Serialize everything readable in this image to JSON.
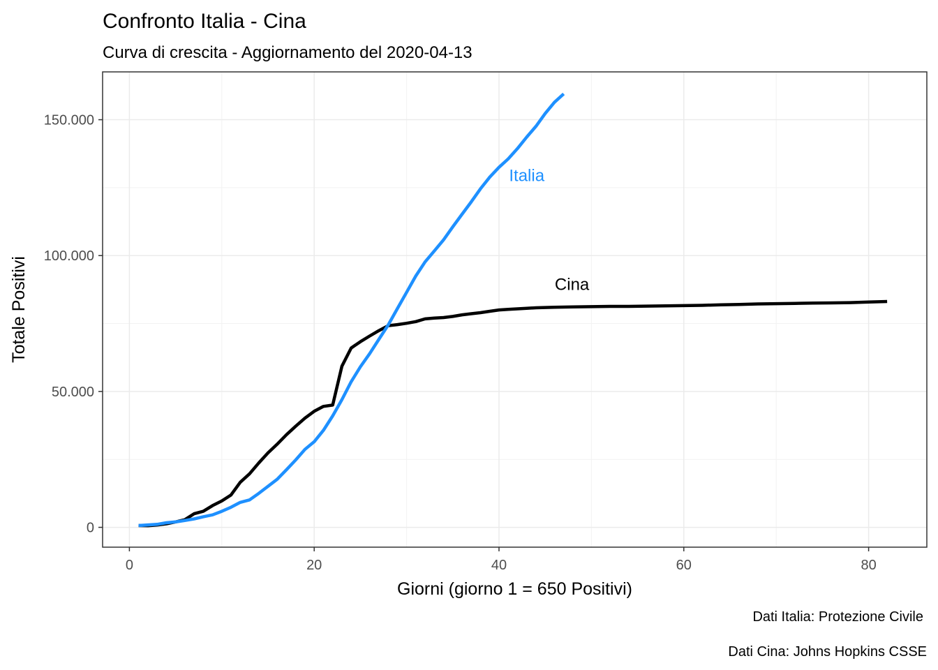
{
  "header": {
    "title": "Confronto Italia - Cina",
    "subtitle": "Curva di crescita - Aggiornamento del 2020-04-13"
  },
  "captions": {
    "line1": "Dati Italia: Protezione Civile",
    "line2": "Dati Cina: Johns Hopkins CSSE"
  },
  "chart_data": {
    "type": "line",
    "title": "Confronto Italia - Cina",
    "subtitle": "Curva di crescita - Aggiornamento del 2020-04-13",
    "xlabel": "Giorni (giorno 1 = 650 Positivi)",
    "ylabel": "Totale Positivi",
    "xlim": [
      -2.9,
      86.3
    ],
    "ylim": [
      -7300,
      167600
    ],
    "x_ticks": [
      0,
      20,
      40,
      60,
      80
    ],
    "x_tick_labels": [
      "0",
      "20",
      "40",
      "60",
      "80"
    ],
    "y_ticks": [
      0,
      50000,
      100000,
      150000
    ],
    "y_tick_labels": [
      "0",
      "50.000",
      "100.000",
      "150.000"
    ],
    "grid": true,
    "legend": "none",
    "series": [
      {
        "name": "Cina",
        "color": "#000000",
        "label_at": [
          47.9,
          89000
        ],
        "x": [
          1,
          2,
          3,
          4,
          5,
          6,
          7,
          8,
          9,
          10,
          11,
          12,
          13,
          14,
          15,
          16,
          17,
          18,
          19,
          20,
          21,
          22,
          23,
          24,
          25,
          26,
          27,
          28,
          29,
          30,
          31,
          32,
          33,
          34,
          35,
          36,
          37,
          38,
          39,
          40,
          41,
          42,
          43,
          44,
          45,
          46,
          48,
          50,
          52,
          54,
          56,
          58,
          60,
          62,
          64,
          66,
          68,
          70,
          72,
          74,
          76,
          78,
          80,
          82
        ],
        "values": [
          650,
          580,
          850,
          1300,
          2000,
          2800,
          5000,
          5900,
          8000,
          9700,
          11900,
          16600,
          19700,
          23700,
          27400,
          30600,
          34100,
          37200,
          40200,
          42700,
          44500,
          45000,
          59300,
          66000,
          68300,
          70400,
          72400,
          74200,
          74600,
          75100,
          75700,
          76700,
          77000,
          77200,
          77600,
          78200,
          78600,
          79000,
          79500,
          80000,
          80200,
          80400,
          80600,
          80800,
          80900,
          81000,
          81100,
          81200,
          81300,
          81300,
          81400,
          81500,
          81600,
          81700,
          81900,
          82000,
          82200,
          82300,
          82400,
          82500,
          82600,
          82700,
          82900,
          83100
        ]
      },
      {
        "name": "Italia",
        "color": "#1e90ff",
        "label_at": [
          43.0,
          129000
        ],
        "x": [
          1,
          2,
          3,
          4,
          5,
          6,
          7,
          8,
          9,
          10,
          11,
          12,
          13,
          14,
          15,
          16,
          17,
          18,
          19,
          20,
          21,
          22,
          23,
          24,
          25,
          26,
          27,
          28,
          29,
          30,
          31,
          32,
          33,
          34,
          35,
          36,
          37,
          38,
          39,
          40,
          41,
          42,
          43,
          44,
          45,
          46,
          47
        ],
        "values": [
          650,
          900,
          1100,
          1700,
          2000,
          2500,
          3100,
          3900,
          4600,
          5900,
          7400,
          9200,
          10100,
          12500,
          15100,
          17700,
          21200,
          24800,
          28700,
          31500,
          35700,
          41000,
          47000,
          53600,
          59100,
          63900,
          69200,
          74400,
          80500,
          86500,
          92500,
          97700,
          101700,
          105800,
          110600,
          115200,
          119800,
          124600,
          128900,
          132500,
          135600,
          139400,
          143600,
          147600,
          152300,
          156400,
          159500
        ]
      }
    ]
  }
}
